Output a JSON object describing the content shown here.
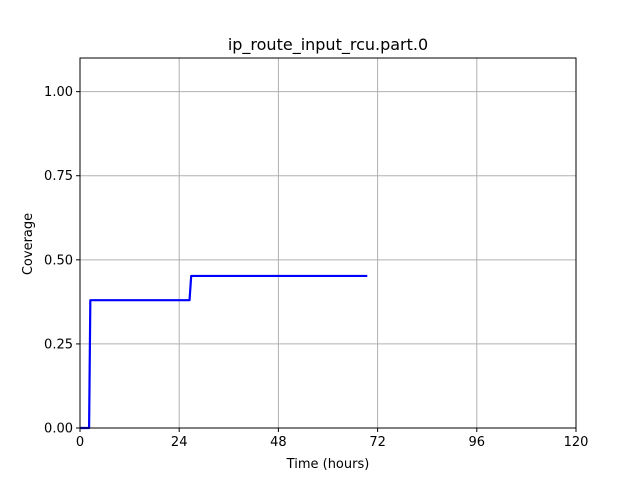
{
  "chart_data": {
    "type": "line",
    "title": "ip_route_input_rcu.part.0",
    "xlabel": "Time (hours)",
    "ylabel": "Coverage",
    "xlim": [
      0,
      120
    ],
    "ylim": [
      0,
      1.1
    ],
    "xticks": [
      0,
      24,
      48,
      72,
      96,
      120
    ],
    "xtick_labels": [
      "0",
      "24",
      "48",
      "72",
      "96",
      "120"
    ],
    "yticks": [
      0.0,
      0.25,
      0.5,
      0.75,
      1.0
    ],
    "ytick_labels": [
      "0.00",
      "0.25",
      "0.50",
      "0.75",
      "1.00"
    ],
    "grid": true,
    "series": [
      {
        "color": "#0000ff",
        "x": [
          0,
          2.2,
          2.5,
          26.5,
          26.9,
          69.5
        ],
        "y": [
          0.0,
          0.0,
          0.38,
          0.38,
          0.452,
          0.452
        ]
      }
    ]
  }
}
